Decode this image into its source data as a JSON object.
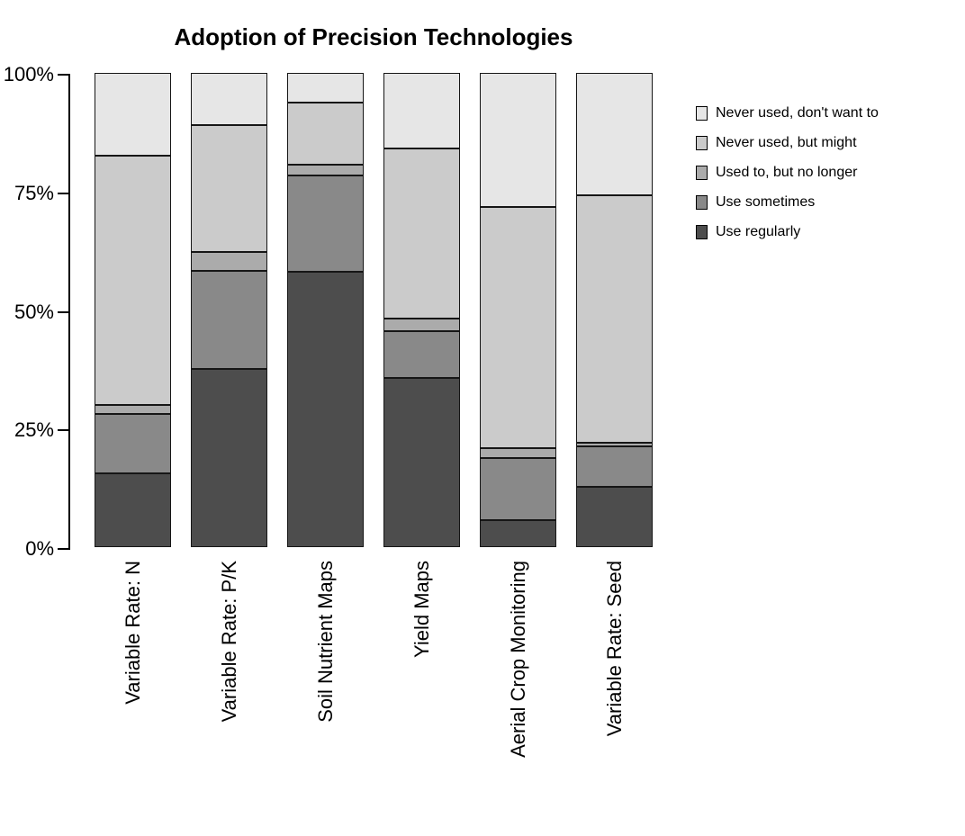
{
  "chart_data": {
    "type": "bar",
    "stacked": true,
    "percent": true,
    "title": "Adoption of Precision Technologies",
    "xlabel": "",
    "ylabel": "",
    "grid": false,
    "categories": [
      "Variable Rate: N",
      "Variable Rate: P/K",
      "Soil Nutrient Maps",
      "Yield Maps",
      "Aerial Crop Monitoring",
      "Variable Rate: Seed"
    ],
    "series": [
      {
        "name": "Use regularly",
        "color": "#4d4d4d",
        "values": [
          15.5,
          37.6,
          58.0,
          35.7,
          5.7,
          12.8
        ]
      },
      {
        "name": "Use sometimes",
        "color": "#898989",
        "values": [
          12.6,
          20.7,
          20.4,
          9.9,
          13.0,
          8.4
        ]
      },
      {
        "name": "Used to, but no longer",
        "color": "#ababab",
        "values": [
          1.9,
          4.0,
          2.3,
          2.6,
          2.2,
          0.9
        ]
      },
      {
        "name": "Never used, but might",
        "color": "#cbcbcb",
        "values": [
          52.6,
          26.7,
          13.0,
          35.9,
          50.8,
          52.1
        ]
      },
      {
        "name": "Never used, don't want to",
        "color": "#e6e6e6",
        "values": [
          17.4,
          11.0,
          6.3,
          15.9,
          28.3,
          25.8
        ]
      }
    ],
    "series_order_note": "bottom-of-stack first",
    "y_axis": {
      "range": [
        0,
        100
      ],
      "ticks": [
        {
          "label": "0%",
          "value": 0
        },
        {
          "label": "25%",
          "value": 25
        },
        {
          "label": "50%",
          "value": 50
        },
        {
          "label": "75%",
          "value": 75
        },
        {
          "label": "100%",
          "value": 100
        }
      ]
    },
    "legend": {
      "position": "right",
      "entries_top_to_bottom": [
        "Never used, don't want to",
        "Never used, but might",
        "Used to, but no longer",
        "Use sometimes",
        "Use regularly"
      ]
    }
  }
}
